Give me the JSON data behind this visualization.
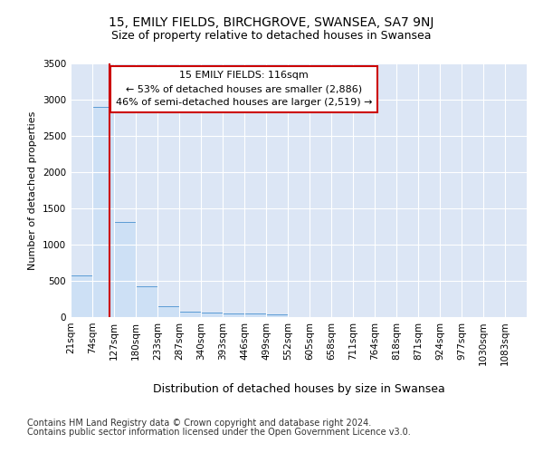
{
  "title": "15, EMILY FIELDS, BIRCHGROVE, SWANSEA, SA7 9NJ",
  "subtitle": "Size of property relative to detached houses in Swansea",
  "xlabel": "Distribution of detached houses by size in Swansea",
  "ylabel": "Number of detached properties",
  "footer1": "Contains HM Land Registry data © Crown copyright and database right 2024.",
  "footer2": "Contains public sector information licensed under the Open Government Licence v3.0.",
  "annotation_line1": "15 EMILY FIELDS: 116sqm",
  "annotation_line2": "← 53% of detached houses are smaller (2,886)",
  "annotation_line3": "46% of semi-detached houses are larger (2,519) →",
  "property_size": 116,
  "bar_edge_color": "#5b9bd5",
  "bar_face_color": "#cde0f5",
  "marker_color": "#cc0000",
  "plot_bg_color": "#dce6f5",
  "categories": [
    "21sqm",
    "74sqm",
    "127sqm",
    "180sqm",
    "233sqm",
    "287sqm",
    "340sqm",
    "393sqm",
    "446sqm",
    "499sqm",
    "552sqm",
    "605sqm",
    "658sqm",
    "711sqm",
    "764sqm",
    "818sqm",
    "871sqm",
    "924sqm",
    "977sqm",
    "1030sqm",
    "1083sqm"
  ],
  "bin_edges": [
    21,
    74,
    127,
    180,
    233,
    287,
    340,
    393,
    446,
    499,
    552,
    605,
    658,
    711,
    764,
    818,
    871,
    924,
    977,
    1030,
    1083
  ],
  "bar_heights": [
    580,
    2900,
    1310,
    420,
    155,
    80,
    60,
    55,
    45,
    35,
    0,
    0,
    0,
    0,
    0,
    0,
    0,
    0,
    0,
    0
  ],
  "ylim": [
    0,
    3500
  ],
  "yticks": [
    0,
    500,
    1000,
    1500,
    2000,
    2500,
    3000,
    3500
  ],
  "title_fontsize": 10,
  "subtitle_fontsize": 9,
  "ylabel_fontsize": 8,
  "tick_fontsize": 7.5,
  "annotation_fontsize": 8,
  "xlabel_fontsize": 9,
  "footer_fontsize": 7
}
